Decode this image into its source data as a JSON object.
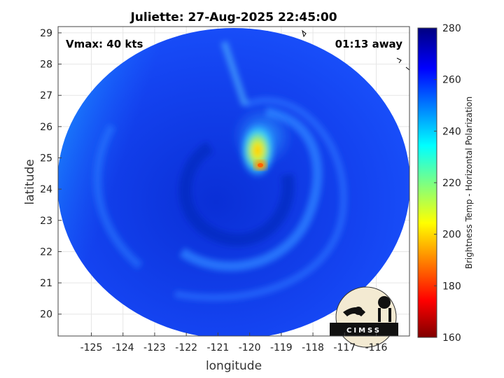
{
  "header": {
    "title": "Juliette: 27-Aug-2025 22:45:00"
  },
  "annotations": {
    "vmax": "Vmax: 40 kts",
    "time_away": "01:13 away"
  },
  "axes": {
    "xlabel": "longitude",
    "ylabel": "latitude",
    "x_ticks": [
      -125,
      -124,
      -123,
      -122,
      -121,
      -120,
      -119,
      -118,
      -117,
      -116
    ],
    "x_tick_labels": [
      "-125",
      "-124",
      "-123",
      "-122",
      "-121",
      "-120",
      "-119",
      "-118",
      "-117",
      "-116"
    ],
    "y_ticks": [
      20,
      21,
      22,
      23,
      24,
      25,
      26,
      27,
      28,
      29
    ],
    "y_tick_labels": [
      "20",
      "21",
      "22",
      "23",
      "24",
      "25",
      "26",
      "27",
      "28",
      "29"
    ],
    "xlim": [
      -126.05,
      -114.95
    ],
    "ylim": [
      19.3,
      29.2
    ],
    "grid": true
  },
  "colorbar": {
    "label": "Brightness Temp - Horizontal Polarization",
    "range": [
      160,
      280
    ],
    "ticks": [
      160,
      180,
      200,
      220,
      240,
      260,
      280
    ],
    "tick_labels": [
      "160",
      "180",
      "200",
      "220",
      "240",
      "260",
      "280"
    ],
    "colormap": "jet-reversed",
    "stops": [
      "#800000",
      "#ff0000",
      "#ffff00",
      "#00ffff",
      "#0000ff",
      "#000080"
    ]
  },
  "swath": {
    "center_lon": -120.5,
    "center_lat": 24.35,
    "storm_center_lon": -119.8,
    "storm_center_lat": 24.75,
    "storm_min_temp": 193,
    "background_temp": 263
  },
  "logo": {
    "text": "CIMSS"
  }
}
